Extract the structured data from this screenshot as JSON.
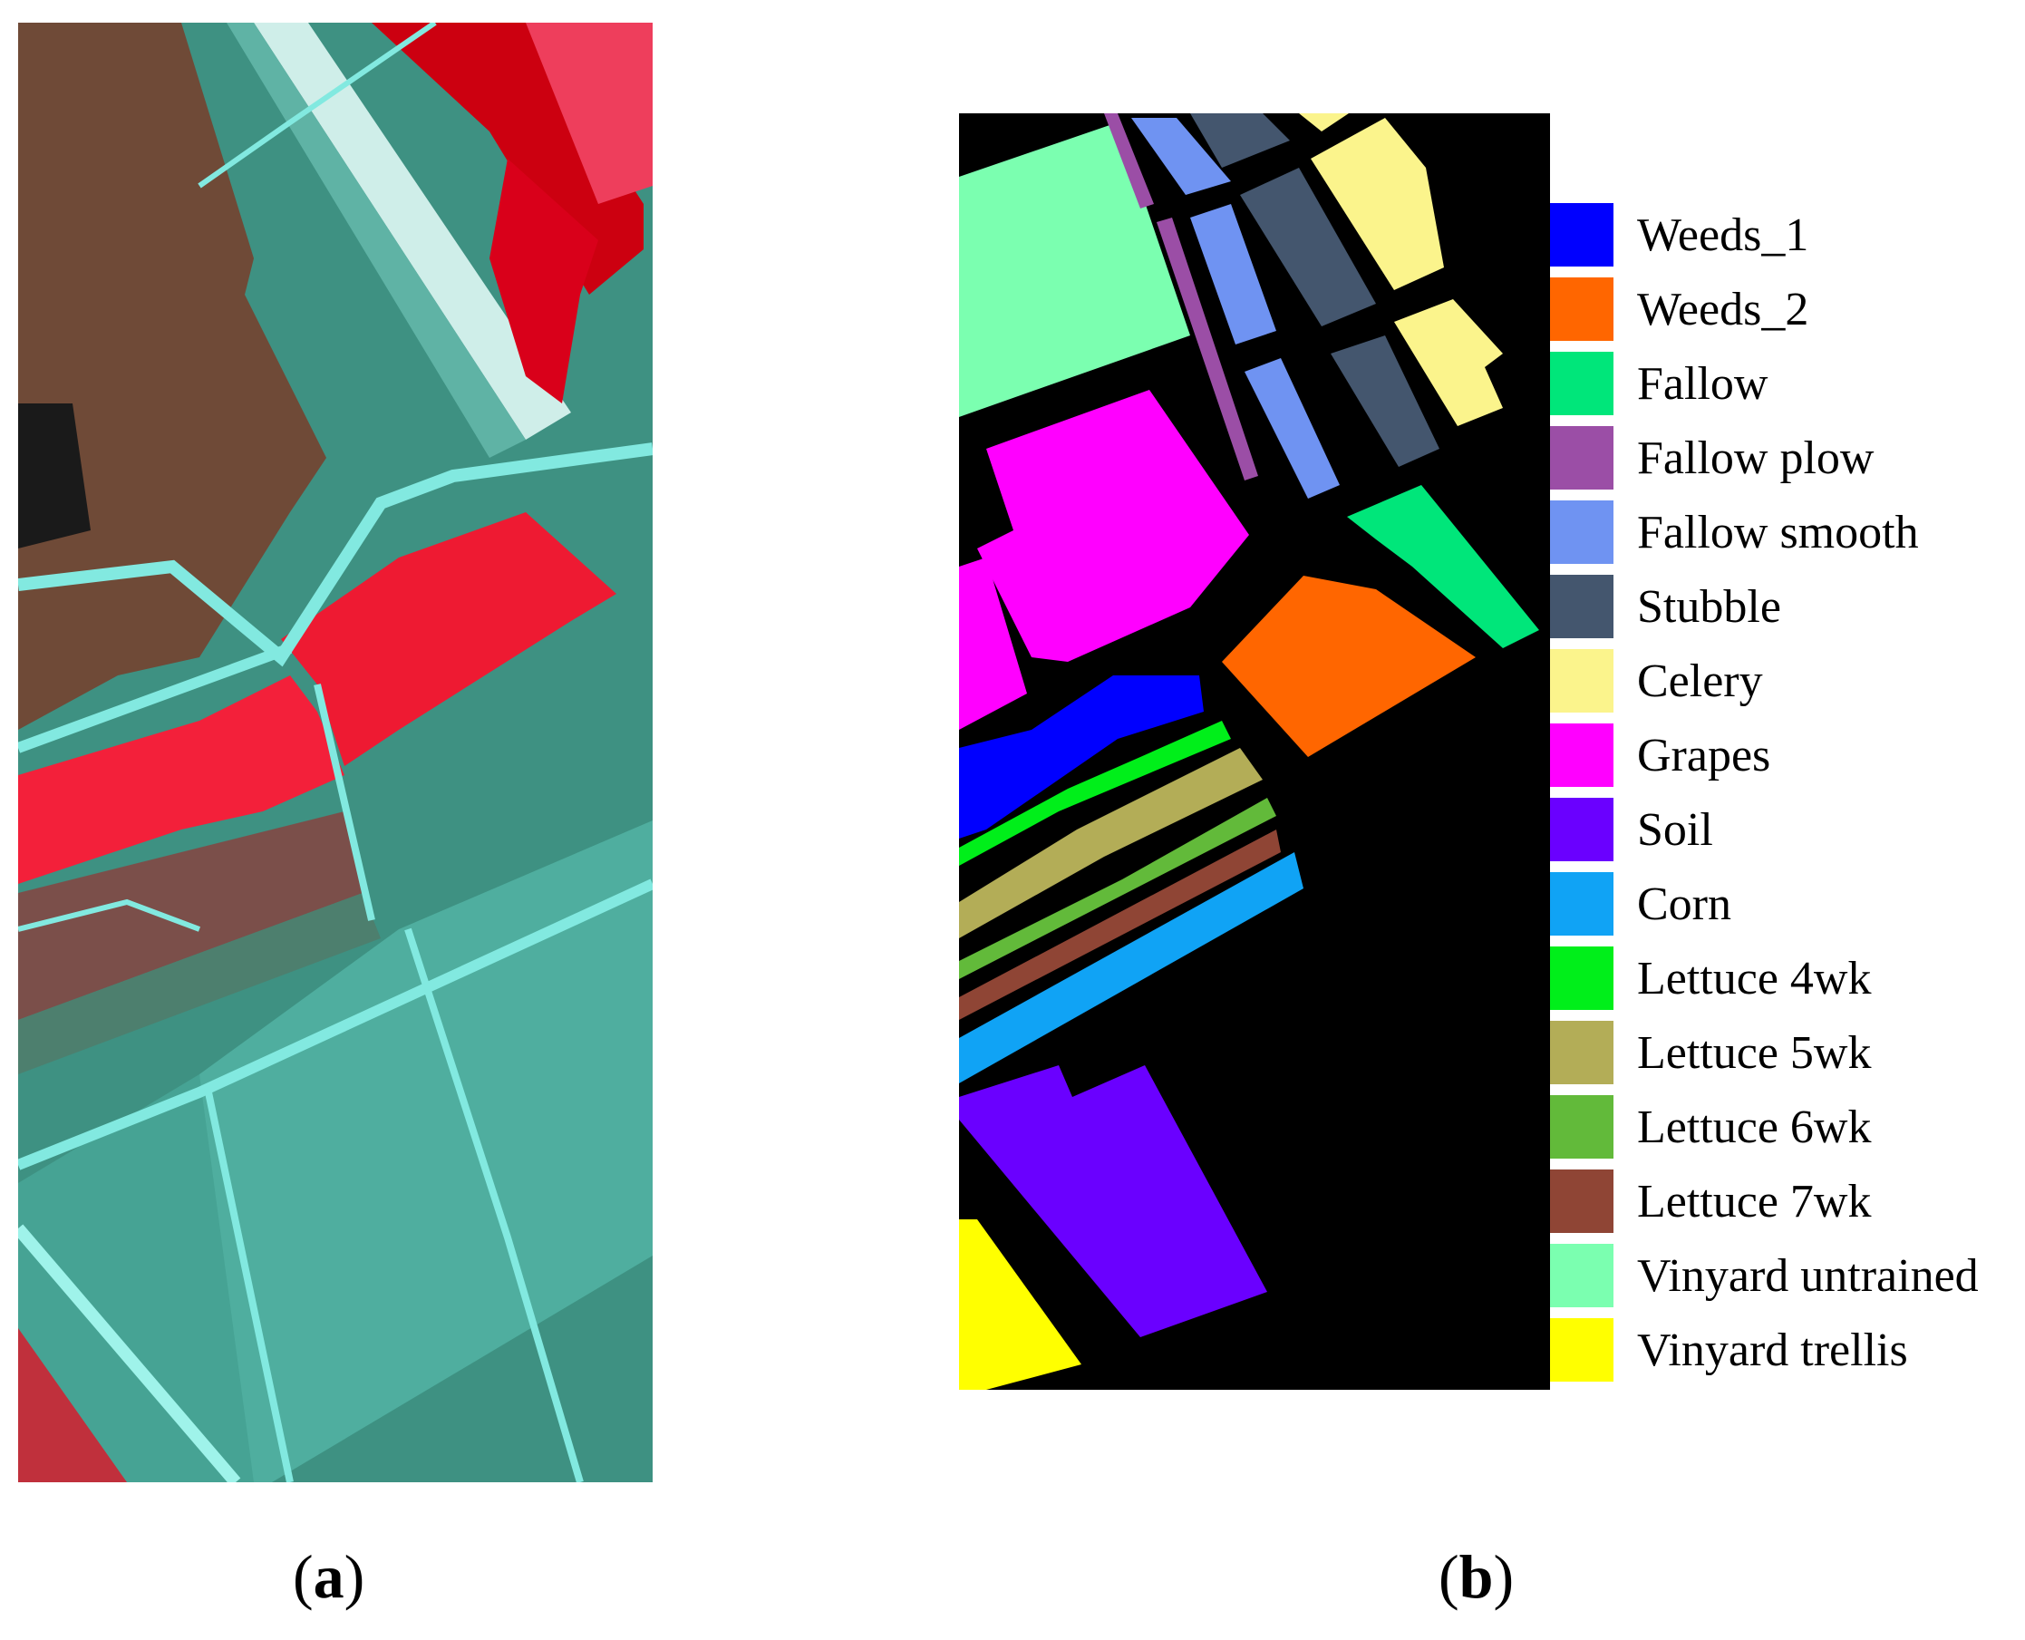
{
  "captions": {
    "a_letter": "a",
    "b_letter": "b"
  },
  "legend": [
    {
      "label": "Weeds_1",
      "color": "#0000ff"
    },
    {
      "label": "Weeds_2",
      "color": "#ff6600"
    },
    {
      "label": "Fallow",
      "color": "#00e67a"
    },
    {
      "label": "Fallow plow",
      "color": "#9b4ea6"
    },
    {
      "label": "Fallow smooth",
      "color": "#6f93f2"
    },
    {
      "label": "Stubble",
      "color": "#44566e"
    },
    {
      "label": "Celery",
      "color": "#fbf48c"
    },
    {
      "label": "Grapes",
      "color": "#ff00ff"
    },
    {
      "label": "Soil",
      "color": "#6a00ff"
    },
    {
      "label": "Corn",
      "color": "#10a3f5"
    },
    {
      "label": "Lettuce 4wk",
      "color": "#00ef1a"
    },
    {
      "label": "Lettuce 5wk",
      "color": "#b3ad57"
    },
    {
      "label": "Lettuce 6wk",
      "color": "#62ba3a"
    },
    {
      "label": "Lettuce 7wk",
      "color": "#8f4535"
    },
    {
      "label": "Vinyard untrained",
      "color": "#7bffb0"
    },
    {
      "label": "Vinyard trellis",
      "color": "#ffff00"
    }
  ],
  "colors": {
    "background_map": "#000000",
    "false_color_base": "#3e9182",
    "false_color_brown": "#6f4a37",
    "false_color_red": "#ee1a32",
    "false_color_road": "#82e9e0"
  }
}
